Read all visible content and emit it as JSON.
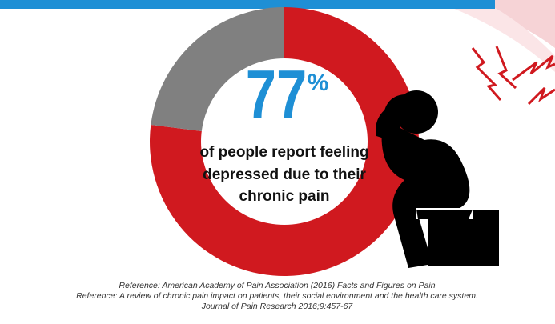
{
  "chart_data": {
    "type": "donut",
    "values": [
      77,
      23
    ],
    "colors": [
      "#d0191f",
      "#808080"
    ],
    "unit": "%",
    "caption": [
      "of people report feeling",
      "depressed due to their",
      "chronic pain"
    ],
    "references": [
      "Reference: American Academy of Pain Association (2016) Facts and Figures on Pain",
      "Reference: A review of chronic pain impact on patients, their social environment and the health care system.",
      "Journal of Pain Research 2016;9:457-67"
    ]
  }
}
